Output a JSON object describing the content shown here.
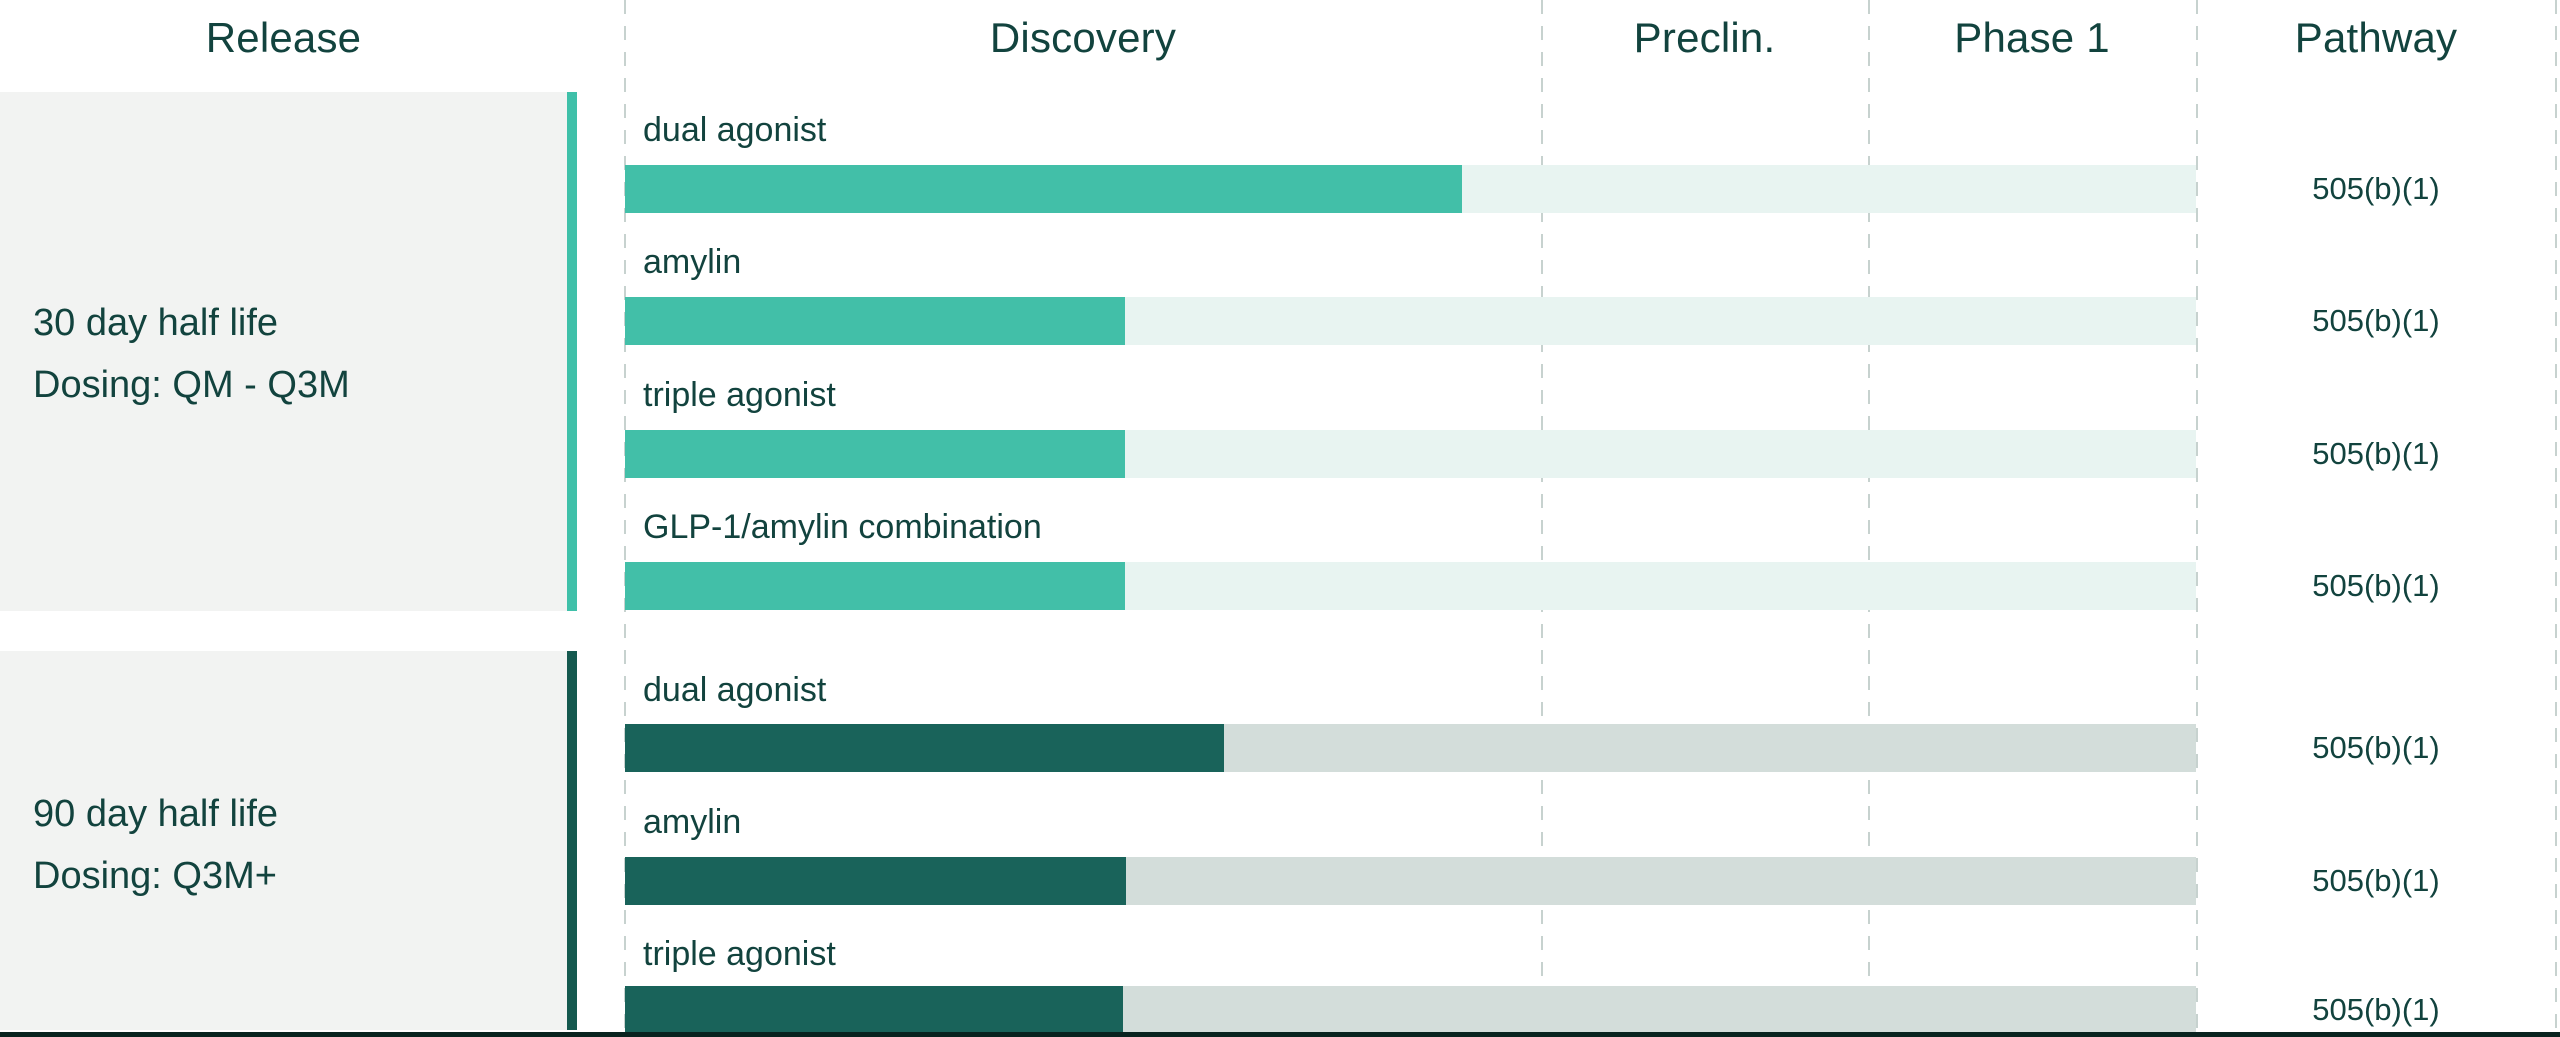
{
  "header": {
    "release": "Release",
    "discovery": "Discovery",
    "preclin": "Preclin.",
    "phase1": "Phase 1",
    "pathway": "Pathway"
  },
  "groups": [
    {
      "release_line1": "30 day half life",
      "release_line2": "Dosing: QM - Q3M",
      "theme": "light-teal",
      "programs": [
        {
          "label": "dual agonist",
          "stage": "Discovery",
          "fill_pct": 53.3,
          "pathway": "505(b)(1)"
        },
        {
          "label": "amylin",
          "stage": "Discovery",
          "fill_pct": 31.8,
          "pathway": "505(b)(1)"
        },
        {
          "label": "triple agonist",
          "stage": "Discovery",
          "fill_pct": 31.8,
          "pathway": "505(b)(1)"
        },
        {
          "label": "GLP-1/amylin combination",
          "stage": "Discovery",
          "fill_pct": 31.8,
          "pathway": "505(b)(1)"
        }
      ]
    },
    {
      "release_line1": "90 day half life",
      "release_line2": "Dosing: Q3M+",
      "theme": "dark-green",
      "programs": [
        {
          "label": "dual agonist",
          "stage": "Discovery",
          "fill_pct": 38.1,
          "pathway": "505(b)(1)"
        },
        {
          "label": "amylin",
          "stage": "Discovery",
          "fill_pct": 31.9,
          "pathway": "505(b)(1)"
        },
        {
          "label": "triple agonist",
          "stage": "Discovery",
          "fill_pct": 31.7,
          "pathway": "505(b)(1)"
        }
      ]
    }
  ],
  "colors": {
    "teal": "#42bfa8",
    "teal_track": "#e8f4f1",
    "dark": "#19635a",
    "dark_track": "#d3ddda",
    "accent_teal": "#3fc0a9",
    "accent_dark": "#15594f",
    "panel": "#f2f3f2",
    "text": "#12433e",
    "divider": "#c7d2cf",
    "bottom": "#09231f"
  },
  "chart_data": {
    "type": "bar",
    "subtype": "pipeline-progress",
    "phase_columns": [
      "Discovery",
      "Preclin.",
      "Phase 1"
    ],
    "extra_columns": [
      "Release",
      "Pathway"
    ],
    "progress_scale": "percent of Discovery-through-Phase-1 span",
    "series": [
      {
        "group": "30 day half life (Dosing: QM - Q3M)",
        "categories": [
          "dual agonist",
          "amylin",
          "triple agonist",
          "GLP-1/amylin combination"
        ],
        "values": [
          53.3,
          31.8,
          31.8,
          31.8
        ],
        "pathway": [
          "505(b)(1)",
          "505(b)(1)",
          "505(b)(1)",
          "505(b)(1)"
        ]
      },
      {
        "group": "90 day half life (Dosing: Q3M+)",
        "categories": [
          "dual agonist",
          "amylin",
          "triple agonist"
        ],
        "values": [
          38.1,
          31.9,
          31.7
        ],
        "pathway": [
          "505(b)(1)",
          "505(b)(1)",
          "505(b)(1)"
        ]
      }
    ],
    "legend": "none",
    "gridlines": "dashed vertical column separators"
  }
}
